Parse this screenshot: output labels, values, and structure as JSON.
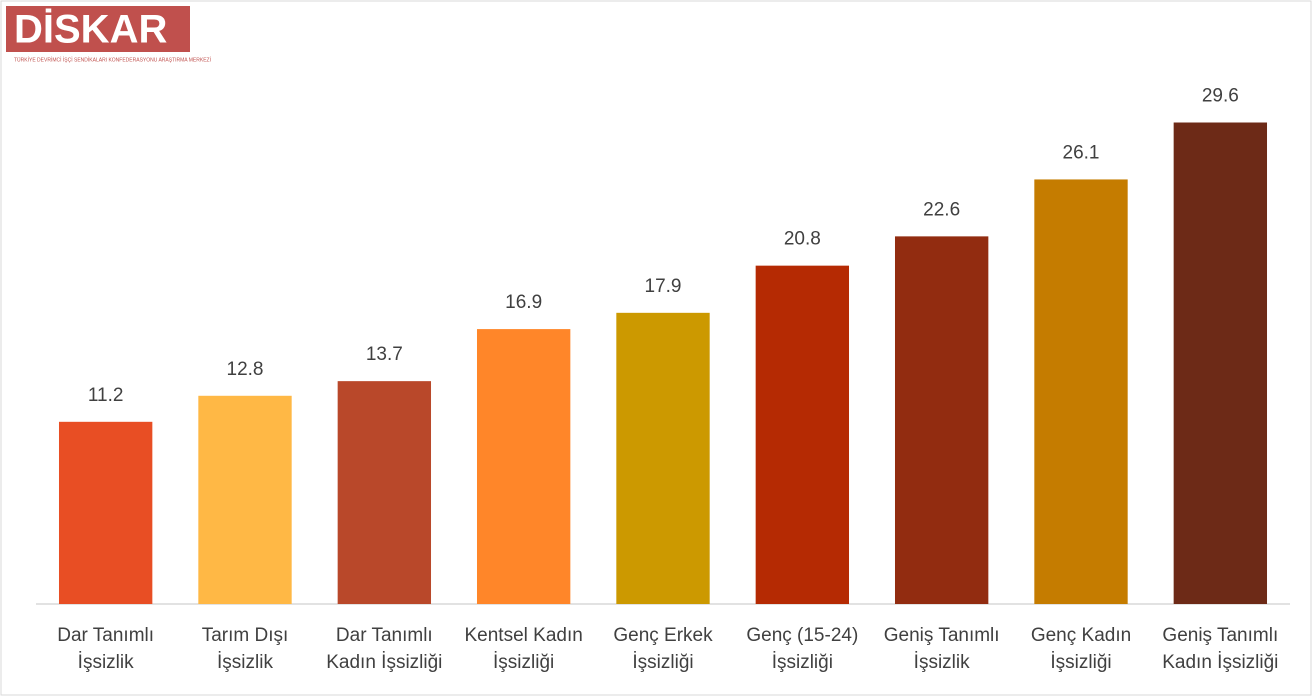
{
  "logo": {
    "text": "DİSKAR",
    "subtitle": "TÜRKİYE DEVRİMCİ İŞÇİ SENDİKALARI KONFEDERASYONU ARAŞTIRMA MERKEZİ"
  },
  "chart_data": {
    "type": "bar",
    "categories": [
      "Dar Tanımlı\nİşsizlik",
      "Tarım Dışı\nİşsizlik",
      "Dar Tanımlı\nKadın İşsizliği",
      "Kentsel Kadın\nİşsizliği",
      "Genç Erkek\nİşsizliği",
      "Genç (15-24)\nİşsizliği",
      "Geniş Tanımlı\nİşsizlik",
      "Genç Kadın\nİşsizliği",
      "Geniş Tanımlı\nKadın İşsizliği"
    ],
    "values": [
      11.2,
      12.8,
      13.7,
      16.9,
      17.9,
      20.8,
      22.6,
      26.1,
      29.6
    ],
    "colors": [
      "#e84e24",
      "#ffb845",
      "#b9482a",
      "#ff8629",
      "#cc9900",
      "#b52a03",
      "#922c10",
      "#c57c00",
      "#6d2a17"
    ],
    "ylim": [
      0,
      30
    ]
  }
}
